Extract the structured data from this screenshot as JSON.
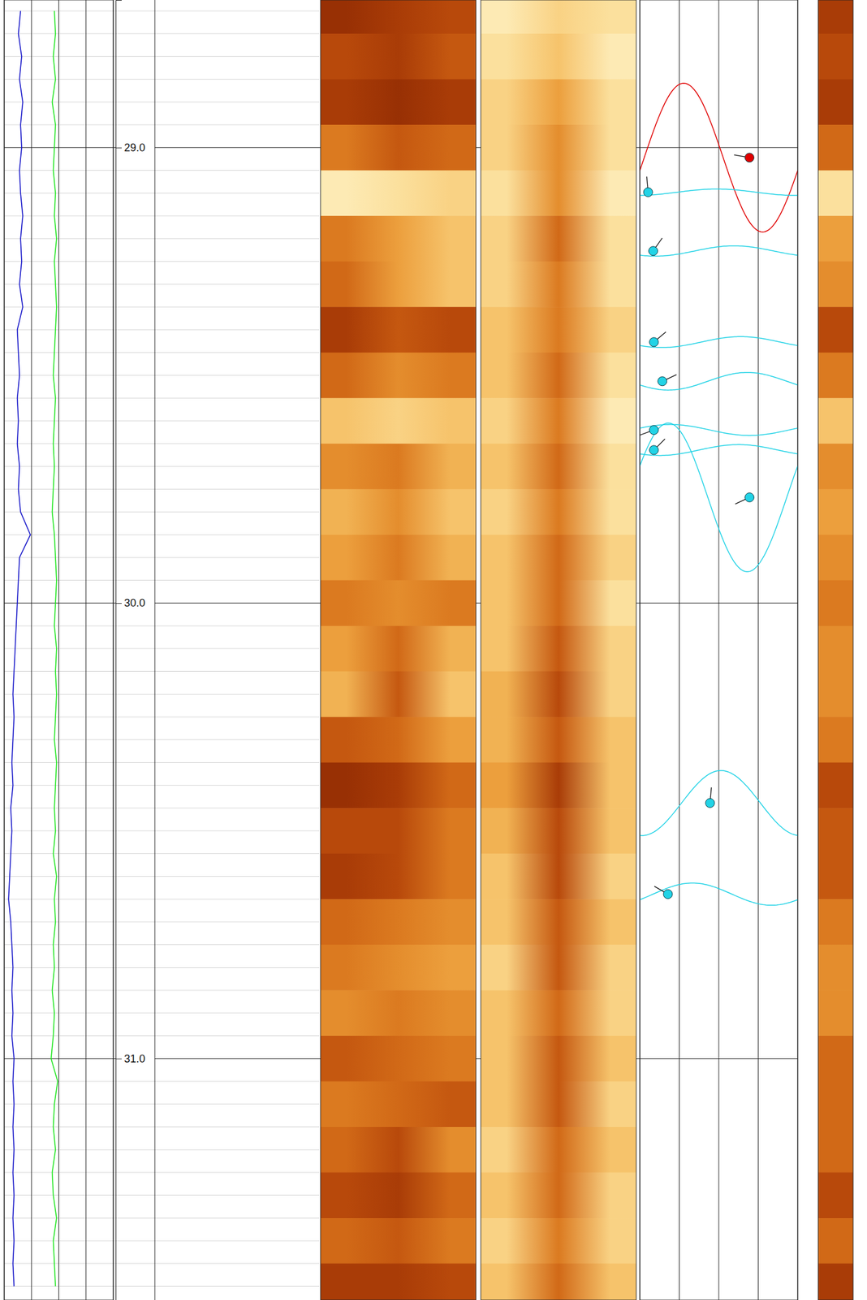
{
  "chart_data": {
    "type": "well_log",
    "ylim": [
      28.676,
      31.53
    ],
    "yticks": [
      {
        "value": 29,
        "label": "29.0"
      },
      {
        "value": 30,
        "label": "30.0"
      },
      {
        "value": 31,
        "label": "31.0"
      }
    ],
    "yticks_minor": [
      28.7,
      28.75,
      28.8,
      28.85,
      28.9,
      28.95,
      29.05,
      29.1,
      29.15,
      29.2,
      29.25,
      29.3,
      29.35,
      29.4,
      29.45,
      29.5,
      29.55,
      29.6,
      29.65,
      29.7,
      29.75,
      29.8,
      29.85,
      29.9,
      29.95,
      30.05,
      30.1,
      30.15,
      30.2,
      30.25,
      30.3,
      30.35,
      30.4,
      30.45,
      30.5,
      30.55,
      30.6,
      30.65,
      30.7,
      30.75,
      30.8,
      30.85,
      30.9,
      30.95,
      31.05,
      31.1,
      31.15,
      31.2,
      31.25,
      31.3,
      31.35,
      31.4,
      31.45,
      31.5
    ],
    "tick_labels": "y",
    "grid": true,
    "zlim": [
      0,
      1
    ],
    "tracks": [
      {
        "type": "line",
        "xlim": [
          0,
          100
        ],
        "xticks": [
          0,
          25,
          50,
          75,
          100
        ],
        "grid": true,
        "series": [
          {
            "color": "#1414c8",
            "depth": [
              28.7,
              28.75,
              28.8,
              28.85,
              28.9,
              28.95,
              29,
              29.05,
              29.1,
              29.15,
              29.2,
              29.25,
              29.3,
              29.35,
              29.4,
              29.45,
              29.5,
              29.55,
              29.6,
              29.65,
              29.7,
              29.75,
              29.8,
              29.85,
              29.9,
              29.95,
              30,
              30.05,
              30.1,
              30.15,
              30.2,
              30.25,
              30.3,
              30.35,
              30.4,
              30.45,
              30.5,
              30.55,
              30.6,
              30.65,
              30.7,
              30.75,
              30.8,
              30.85,
              30.9,
              30.95,
              31,
              31.05,
              31.1,
              31.15,
              31.2,
              31.25,
              31.3,
              31.35,
              31.4,
              31.45,
              31.5
            ],
            "values": [
              15,
              13,
              16,
              14,
              17,
              15,
              16,
              14,
              15,
              17,
              15,
              16,
              14,
              17,
              12,
              13,
              14,
              12,
              13,
              12,
              14,
              13,
              15,
              24,
              14,
              13,
              12,
              11,
              10,
              9,
              8,
              9,
              8,
              7,
              8,
              6,
              7,
              6,
              5,
              4,
              6,
              7,
              8,
              7,
              8,
              7,
              9,
              8,
              9,
              8,
              9,
              8,
              9,
              8,
              9,
              8,
              9
            ]
          },
          {
            "color": "#1ee61e",
            "depth": [
              28.7,
              28.75,
              28.8,
              28.85,
              28.9,
              28.95,
              29,
              29.05,
              29.1,
              29.15,
              29.2,
              29.25,
              29.3,
              29.35,
              29.4,
              29.45,
              29.5,
              29.55,
              29.6,
              29.65,
              29.7,
              29.75,
              29.8,
              29.85,
              29.9,
              29.95,
              30,
              30.05,
              30.1,
              30.15,
              30.2,
              30.25,
              30.3,
              30.35,
              30.4,
              30.45,
              30.5,
              30.55,
              30.6,
              30.65,
              30.7,
              30.75,
              30.8,
              30.85,
              30.9,
              30.95,
              31,
              31.05,
              31.1,
              31.15,
              31.2,
              31.25,
              31.3,
              31.35,
              31.4,
              31.45,
              31.5
            ],
            "values": [
              46,
              47,
              45,
              47,
              44,
              47,
              46,
              45,
              47,
              46,
              48,
              46,
              47,
              48,
              47,
              46,
              45,
              47,
              46,
              45,
              46,
              45,
              44,
              46,
              47,
              48,
              47,
              46,
              48,
              47,
              48,
              47,
              46,
              48,
              47,
              46,
              47,
              45,
              48,
              46,
              47,
              45,
              46,
              44,
              46,
              45,
              43,
              49,
              46,
              45,
              47,
              44,
              45,
              48,
              45,
              46,
              47
            ]
          }
        ]
      },
      {
        "type": "image",
        "row_edges": [
          28.65,
          28.75,
          28.85,
          28.95,
          29.05,
          29.15,
          29.25,
          29.35,
          29.45,
          29.55,
          29.65,
          29.75,
          29.85,
          29.95,
          30.05,
          30.15,
          30.25,
          30.35,
          30.45,
          30.55,
          30.65,
          30.75,
          30.85,
          30.95,
          31.05,
          31.15,
          31.25,
          31.35,
          31.45,
          31.55
        ],
        "cells": [
          [
            0.25,
            0.3,
            0.35
          ],
          [
            0.35,
            0.3,
            0.4
          ],
          [
            0.3,
            0.25,
            0.3
          ],
          [
            0.5,
            0.4,
            0.45
          ],
          [
            0.85,
            0.8,
            0.75
          ],
          [
            0.5,
            0.6,
            0.7
          ],
          [
            0.45,
            0.6,
            0.7
          ],
          [
            0.3,
            0.4,
            0.35
          ],
          [
            0.45,
            0.55,
            0.5
          ],
          [
            0.7,
            0.75,
            0.7
          ],
          [
            0.55,
            0.5,
            0.65
          ],
          [
            0.65,
            0.55,
            0.7
          ],
          [
            0.6,
            0.5,
            0.65
          ],
          [
            0.5,
            0.55,
            0.5
          ],
          [
            0.6,
            0.45,
            0.65
          ],
          [
            0.65,
            0.4,
            0.7
          ],
          [
            0.4,
            0.45,
            0.6
          ],
          [
            0.25,
            0.3,
            0.45
          ],
          [
            0.35,
            0.35,
            0.5
          ],
          [
            0.3,
            0.35,
            0.5
          ],
          [
            0.45,
            0.5,
            0.55
          ],
          [
            0.5,
            0.55,
            0.6
          ],
          [
            0.55,
            0.5,
            0.55
          ],
          [
            0.4,
            0.45,
            0.5
          ],
          [
            0.5,
            0.45,
            0.4
          ],
          [
            0.45,
            0.35,
            0.55
          ],
          [
            0.35,
            0.3,
            0.45
          ],
          [
            0.45,
            0.4,
            0.5
          ],
          [
            0.3,
            0.3,
            0.35
          ]
        ]
      },
      {
        "type": "image",
        "row_edges": [
          28.65,
          28.75,
          28.85,
          28.95,
          29.05,
          29.15,
          29.25,
          29.35,
          29.45,
          29.55,
          29.65,
          29.75,
          29.85,
          29.95,
          30.05,
          30.15,
          30.25,
          30.35,
          30.45,
          30.55,
          30.65,
          30.75,
          30.85,
          30.95,
          31.05,
          31.15,
          31.25,
          31.35,
          31.45,
          31.55
        ],
        "cells": [
          [
            0.85,
            0.75,
            0.8
          ],
          [
            0.8,
            0.7,
            0.85
          ],
          [
            0.75,
            0.6,
            0.8
          ],
          [
            0.75,
            0.55,
            0.8
          ],
          [
            0.8,
            0.55,
            0.85
          ],
          [
            0.75,
            0.45,
            0.8
          ],
          [
            0.75,
            0.5,
            0.8
          ],
          [
            0.7,
            0.5,
            0.75
          ],
          [
            0.7,
            0.45,
            0.8
          ],
          [
            0.75,
            0.5,
            0.85
          ],
          [
            0.7,
            0.45,
            0.8
          ],
          [
            0.75,
            0.5,
            0.8
          ],
          [
            0.7,
            0.45,
            0.75
          ],
          [
            0.7,
            0.45,
            0.8
          ],
          [
            0.7,
            0.4,
            0.75
          ],
          [
            0.65,
            0.35,
            0.75
          ],
          [
            0.65,
            0.4,
            0.7
          ],
          [
            0.6,
            0.3,
            0.7
          ],
          [
            0.65,
            0.35,
            0.7
          ],
          [
            0.7,
            0.35,
            0.75
          ],
          [
            0.7,
            0.4,
            0.7
          ],
          [
            0.75,
            0.4,
            0.75
          ],
          [
            0.7,
            0.45,
            0.75
          ],
          [
            0.7,
            0.4,
            0.7
          ],
          [
            0.7,
            0.4,
            0.75
          ],
          [
            0.75,
            0.45,
            0.7
          ],
          [
            0.7,
            0.45,
            0.75
          ],
          [
            0.75,
            0.5,
            0.75
          ],
          [
            0.7,
            0.45,
            0.7
          ]
        ]
      },
      {
        "type": "dip",
        "xlim": [
          0,
          90
        ],
        "xticks": [
          0,
          22.5,
          45,
          67.5,
          90
        ],
        "grid": true,
        "borehole_diameter": 0.17,
        "series": [
          {
            "color": "#e00000",
            "depth": [
              29.022
            ],
            "dip": [
              62.5
            ],
            "azimuth": [
              280
            ]
          },
          {
            "color": "#22d3e6",
            "depth": [
              29.098,
              29.227,
              29.427,
              29.513,
              29.62,
              29.664,
              29.768,
              30.439,
              30.639
            ],
            "dip": [
              4.7,
              7.6,
              8,
              12.8,
              8,
              8,
              62.5,
              40,
              16
            ],
            "azimuth": [
              355,
              35,
              50,
              65,
              250,
              45,
              245,
              5,
              300
            ]
          }
        ]
      },
      {
        "type": "image",
        "row_edges": [
          28.65,
          28.75,
          28.85,
          28.95,
          29.05,
          29.15,
          29.25,
          29.35,
          29.45,
          29.55,
          29.65,
          29.75,
          29.85,
          29.95,
          30.05,
          30.15,
          30.25,
          30.35,
          30.45,
          30.55,
          30.65,
          30.75,
          30.85,
          30.95,
          31.05,
          31.15,
          31.25,
          31.35,
          31.45,
          31.55
        ],
        "cells": [
          [
            0.3
          ],
          [
            0.35
          ],
          [
            0.3
          ],
          [
            0.45
          ],
          [
            0.8
          ],
          [
            0.6
          ],
          [
            0.55
          ],
          [
            0.35
          ],
          [
            0.5
          ],
          [
            0.7
          ],
          [
            0.55
          ],
          [
            0.6
          ],
          [
            0.55
          ],
          [
            0.5
          ],
          [
            0.55
          ],
          [
            0.55
          ],
          [
            0.5
          ],
          [
            0.35
          ],
          [
            0.4
          ],
          [
            0.4
          ],
          [
            0.5
          ],
          [
            0.55
          ],
          [
            0.55
          ],
          [
            0.45
          ],
          [
            0.45
          ],
          [
            0.45
          ],
          [
            0.35
          ],
          [
            0.45
          ],
          [
            0.3
          ]
        ]
      }
    ]
  }
}
